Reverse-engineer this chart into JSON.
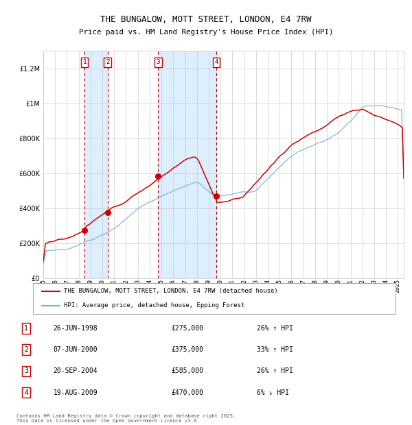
{
  "title": "THE BUNGALOW, MOTT STREET, LONDON, E4 7RW",
  "subtitle": "Price paid vs. HM Land Registry's House Price Index (HPI)",
  "legend_line1": "THE BUNGALOW, MOTT STREET, LONDON, E4 7RW (detached house)",
  "legend_line2": "HPI: Average price, detached house, Epping Forest",
  "transactions": [
    {
      "num": 1,
      "date": "26-JUN-1998",
      "price": 275000,
      "pct": "26%",
      "dir": "↑"
    },
    {
      "num": 2,
      "date": "07-JUN-2000",
      "price": 375000,
      "pct": "33%",
      "dir": "↑"
    },
    {
      "num": 3,
      "date": "20-SEP-2004",
      "price": 585000,
      "pct": "26%",
      "dir": "↑"
    },
    {
      "num": 4,
      "date": "19-AUG-2009",
      "price": 470000,
      "pct": "6%",
      "dir": "↓"
    }
  ],
  "transaction_years": [
    1998.49,
    2000.44,
    2004.72,
    2009.63
  ],
  "transaction_prices": [
    275000,
    375000,
    585000,
    470000
  ],
  "footnote": "Contains HM Land Registry data © Crown copyright and database right 2025.\nThis data is licensed under the Open Government Licence v3.0.",
  "red_color": "#cc0000",
  "blue_color": "#7bafd4",
  "shade_color": "#ddeeff",
  "grid_color": "#cccccc",
  "ylim": [
    0,
    1300000
  ],
  "yticks": [
    0,
    200000,
    400000,
    600000,
    800000,
    1000000,
    1200000
  ],
  "start_year": 1995,
  "end_year": 2025
}
